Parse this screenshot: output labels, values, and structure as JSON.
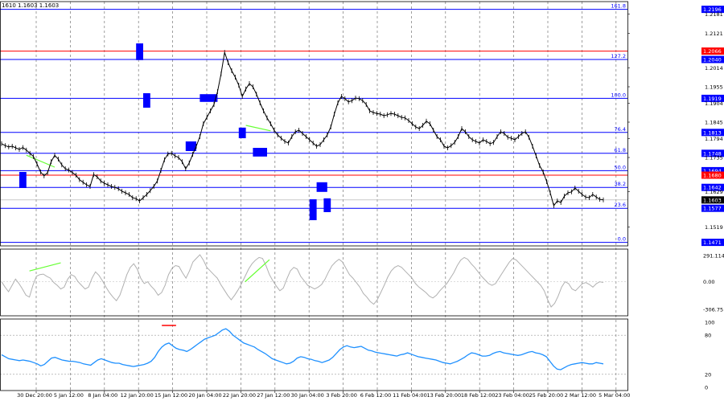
{
  "header": {
    "ohlc_text": "1610 1.1603 1.1603"
  },
  "colors": {
    "fib_line": "#0000ff",
    "red_level": "#ff0000",
    "price_line": "#000000",
    "box": "#0000ff",
    "trendline": "#66ff33",
    "oscillator": "#b0b0b0",
    "rsi": "#1e90ff",
    "grid": "#777777",
    "price_label_bg": "#0000ff",
    "red_label_bg": "#ff0000",
    "current_label_bg": "#000000"
  },
  "fib_levels": [
    {
      "pct": "161.8",
      "price": "1.2196",
      "y_value": 1.2196
    },
    {
      "pct": "127.2",
      "price": "1.2040",
      "y_value": 1.204
    },
    {
      "pct": "100.0",
      "price": "1.1919",
      "y_value": 1.1919
    },
    {
      "pct": "76.4",
      "price": "1.1813",
      "y_value": 1.1813
    },
    {
      "pct": "61.8",
      "price": "1.1748",
      "y_value": 1.1748
    },
    {
      "pct": "50.0",
      "price": "1.1694",
      "y_value": 1.1694
    },
    {
      "pct": "38.2",
      "price": "1.1642",
      "y_value": 1.1642
    },
    {
      "pct": "23.6",
      "price": "1.1577",
      "y_value": 1.1577
    },
    {
      "pct": "0.0",
      "price": "1.1471",
      "y_value": 1.1471
    }
  ],
  "red_levels": [
    {
      "price": "1.2066",
      "y_value": 1.2066
    },
    {
      "price": "1.1680",
      "y_value": 1.168
    }
  ],
  "current_price": {
    "price": "1.1603",
    "y_value": 1.1603
  },
  "price_axis_ticks": [
    "1.2181",
    "1.2121",
    "1.2014",
    "1.1955",
    "1.1904",
    "1.1845",
    "1.1794",
    "1.1735",
    "1.1629",
    "1.1519"
  ],
  "osc_axis": {
    "top": "291.1145",
    "zero": "0.00",
    "bottom": "-306.75"
  },
  "rsi_axis": {
    "top": "100",
    "upper": "80",
    "lower": "20",
    "bottom": "0"
  },
  "time_labels": [
    "30 Dec 20:00",
    "5 Jan 12:00",
    "8 Jan 04:00",
    "12 Jan 20:00",
    "15 Jan 12:00",
    "20 Jan 04:00",
    "22 Jan 20:00",
    "27 Jan 12:00",
    "30 Jan 04:00",
    "3 Feb 20:00",
    "6 Feb 12:00",
    "11 Feb 04:00",
    "13 Feb 20:00",
    "18 Feb 12:00",
    "23 Feb 04:00",
    "25 Feb 20:00",
    "2 Mar 12:00",
    "5 Mar 04:00"
  ],
  "chart_data": [
    {
      "type": "line",
      "title": "",
      "series": [
        {
          "name": "",
          "values": [
            1.1778,
            1.1772,
            1.1768,
            1.177,
            1.1765,
            1.176,
            1.1766,
            1.1758,
            1.1748,
            1.1738,
            1.1715,
            1.169,
            1.1678,
            1.1688,
            1.1722,
            1.1742,
            1.173,
            1.1712,
            1.17,
            1.1696,
            1.1688,
            1.168,
            1.1666,
            1.1658,
            1.165,
            1.1645,
            1.1682,
            1.1675,
            1.1662,
            1.1655,
            1.165,
            1.1645,
            1.1642,
            1.1638,
            1.163,
            1.1625,
            1.162,
            1.161,
            1.1607,
            1.16,
            1.161,
            1.162,
            1.1632,
            1.1645,
            1.1662,
            1.1695,
            1.1728,
            1.1746,
            1.1748,
            1.174,
            1.1735,
            1.1722,
            1.17,
            1.1718,
            1.1745,
            1.177,
            1.18,
            1.184,
            1.186,
            1.188,
            1.19,
            1.194,
            1.1995,
            1.2062,
            1.203,
            1.2005,
            1.1985,
            1.196,
            1.1925,
            1.1948,
            1.1965,
            1.1955,
            1.1932,
            1.1905,
            1.188,
            1.1858,
            1.184,
            1.182,
            1.1805,
            1.1795,
            1.1785,
            1.178,
            1.18,
            1.1815,
            1.182,
            1.181,
            1.18,
            1.179,
            1.178,
            1.177,
            1.1775,
            1.179,
            1.1805,
            1.183,
            1.187,
            1.1905,
            1.1925,
            1.1918,
            1.1908,
            1.1912,
            1.192,
            1.1918,
            1.1912,
            1.19,
            1.188,
            1.1875,
            1.1872,
            1.187,
            1.1865,
            1.1868,
            1.1872,
            1.187,
            1.1865,
            1.186,
            1.1858,
            1.185,
            1.184,
            1.183,
            1.1825,
            1.1835,
            1.1848,
            1.184,
            1.182,
            1.18,
            1.179,
            1.177,
            1.1765,
            1.1772,
            1.1782,
            1.18,
            1.1825,
            1.1815,
            1.18,
            1.179,
            1.1785,
            1.178,
            1.179,
            1.1785,
            1.1778,
            1.1782,
            1.18,
            1.1815,
            1.181,
            1.1798,
            1.1795,
            1.179,
            1.18,
            1.181,
            1.1815,
            1.1798,
            1.177,
            1.174,
            1.171,
            1.169,
            1.166,
            1.1625,
            1.1585,
            1.16,
            1.1595,
            1.1615,
            1.1625,
            1.1628,
            1.164,
            1.163,
            1.162,
            1.1612,
            1.161,
            1.162,
            1.1612,
            1.1605,
            1.1603
          ]
        }
      ],
      "ylim": [
        1.146,
        1.222
      ],
      "annotations": {
        "trendlines": [
          {
            "from": [
              7,
              1.1742
            ],
            "to": [
              15,
              1.1705
            ]
          },
          {
            "from": [
              69,
              1.1835
            ],
            "to": [
              76,
              1.1818
            ]
          }
        ],
        "boxes": [
          {
            "x": [
              5,
              7
            ],
            "y": [
              1.164,
              1.169
            ]
          },
          {
            "x": [
              38,
              40
            ],
            "y": [
              1.2038,
              1.209
            ]
          },
          {
            "x": [
              40,
              42
            ],
            "y": [
              1.189,
              1.1935
            ]
          },
          {
            "x": [
              52,
              55
            ],
            "y": [
              1.1755,
              1.1785
            ]
          },
          {
            "x": [
              56,
              61
            ],
            "y": [
              1.1908,
              1.1932
            ]
          },
          {
            "x": [
              67,
              69
            ],
            "y": [
              1.1795,
              1.1828
            ]
          },
          {
            "x": [
              71,
              75
            ],
            "y": [
              1.1738,
              1.1765
            ]
          },
          {
            "x": [
              87,
              89
            ],
            "y": [
              1.154,
              1.1605
            ]
          },
          {
            "x": [
              89,
              92
            ],
            "y": [
              1.1628,
              1.1658
            ]
          },
          {
            "x": [
              91,
              93
            ],
            "y": [
              1.1565,
              1.1608
            ]
          }
        ]
      }
    },
    {
      "type": "line",
      "title": "",
      "series": [
        {
          "name": "",
          "values": [
            0,
            -60,
            -110,
            -40,
            30,
            -20,
            -80,
            -150,
            -170,
            -40,
            60,
            80,
            85,
            60,
            40,
            -10,
            -40,
            -80,
            -60,
            30,
            80,
            60,
            0,
            -40,
            -80,
            -60,
            40,
            110,
            70,
            10,
            -60,
            -120,
            -170,
            -210,
            -150,
            -40,
            80,
            160,
            200,
            140,
            40,
            -20,
            0,
            -50,
            -90,
            -150,
            -120,
            -40,
            80,
            150,
            180,
            170,
            100,
            40,
            120,
            220,
            260,
            300,
            240,
            160,
            120,
            80,
            40,
            -30,
            -90,
            -150,
            -200,
            -150,
            -90,
            -20,
            60,
            140,
            200,
            240,
            270,
            260,
            180,
            80,
            10,
            -50,
            -100,
            -70,
            30,
            120,
            160,
            140,
            60,
            10,
            -40,
            -60,
            -80,
            -60,
            -30,
            30,
            110,
            180,
            220,
            250,
            220,
            150,
            80,
            40,
            -10,
            -60,
            -130,
            -170,
            -220,
            -250,
            -200,
            -120,
            -40,
            50,
            120,
            160,
            180,
            160,
            120,
            80,
            40,
            -20,
            -60,
            -90,
            -120,
            -160,
            -180,
            -150,
            -100,
            -60,
            -20,
            40,
            100,
            180,
            240,
            270,
            250,
            200,
            160,
            110,
            60,
            20,
            -20,
            -40,
            -20,
            40,
            100,
            160,
            220,
            260,
            240,
            200,
            160,
            120,
            80,
            40,
            0,
            -40,
            -100,
            -200,
            -280,
            -240,
            -160,
            -60,
            0,
            -20,
            -80,
            -100,
            -60,
            -20,
            -10,
            -30,
            -60,
            -20,
            0,
            -10
          ]
        }
      ],
      "ylim": [
        -306.75,
        291.1145
      ]
    },
    {
      "type": "line",
      "title": "",
      "series": [
        {
          "name": "",
          "values": [
            50,
            47,
            44,
            43,
            42,
            41,
            42,
            41,
            40,
            38,
            36,
            33,
            35,
            40,
            45,
            46,
            44,
            42,
            41,
            40,
            40,
            39,
            38,
            36,
            35,
            34,
            38,
            42,
            44,
            42,
            40,
            38,
            37,
            37,
            35,
            34,
            33,
            32,
            33,
            34,
            35,
            37,
            40,
            46,
            55,
            62,
            66,
            68,
            64,
            60,
            58,
            57,
            55,
            58,
            62,
            66,
            70,
            74,
            76,
            78,
            80,
            84,
            88,
            90,
            86,
            80,
            76,
            72,
            68,
            66,
            64,
            62,
            58,
            55,
            52,
            48,
            44,
            42,
            40,
            38,
            36,
            37,
            40,
            45,
            47,
            46,
            44,
            43,
            41,
            40,
            38,
            40,
            42,
            46,
            52,
            58,
            62,
            64,
            62,
            61,
            62,
            63,
            60,
            57,
            56,
            54,
            53,
            52,
            51,
            50,
            49,
            48,
            50,
            51,
            53,
            51,
            49,
            47,
            46,
            45,
            44,
            43,
            42,
            40,
            38,
            37,
            36,
            38,
            40,
            43,
            46,
            50,
            53,
            52,
            50,
            48,
            48,
            49,
            52,
            54,
            55,
            53,
            52,
            51,
            50,
            49,
            50,
            52,
            54,
            55,
            53,
            52,
            50,
            47,
            40,
            33,
            28,
            27,
            30,
            33,
            35,
            36,
            37,
            38,
            37,
            36,
            36,
            38,
            37,
            36
          ]
        }
      ],
      "ylim": [
        0,
        100
      ],
      "annotations": {
        "overbought_marker": {
          "x": [
            45,
            49
          ],
          "y": 95
        }
      }
    }
  ]
}
